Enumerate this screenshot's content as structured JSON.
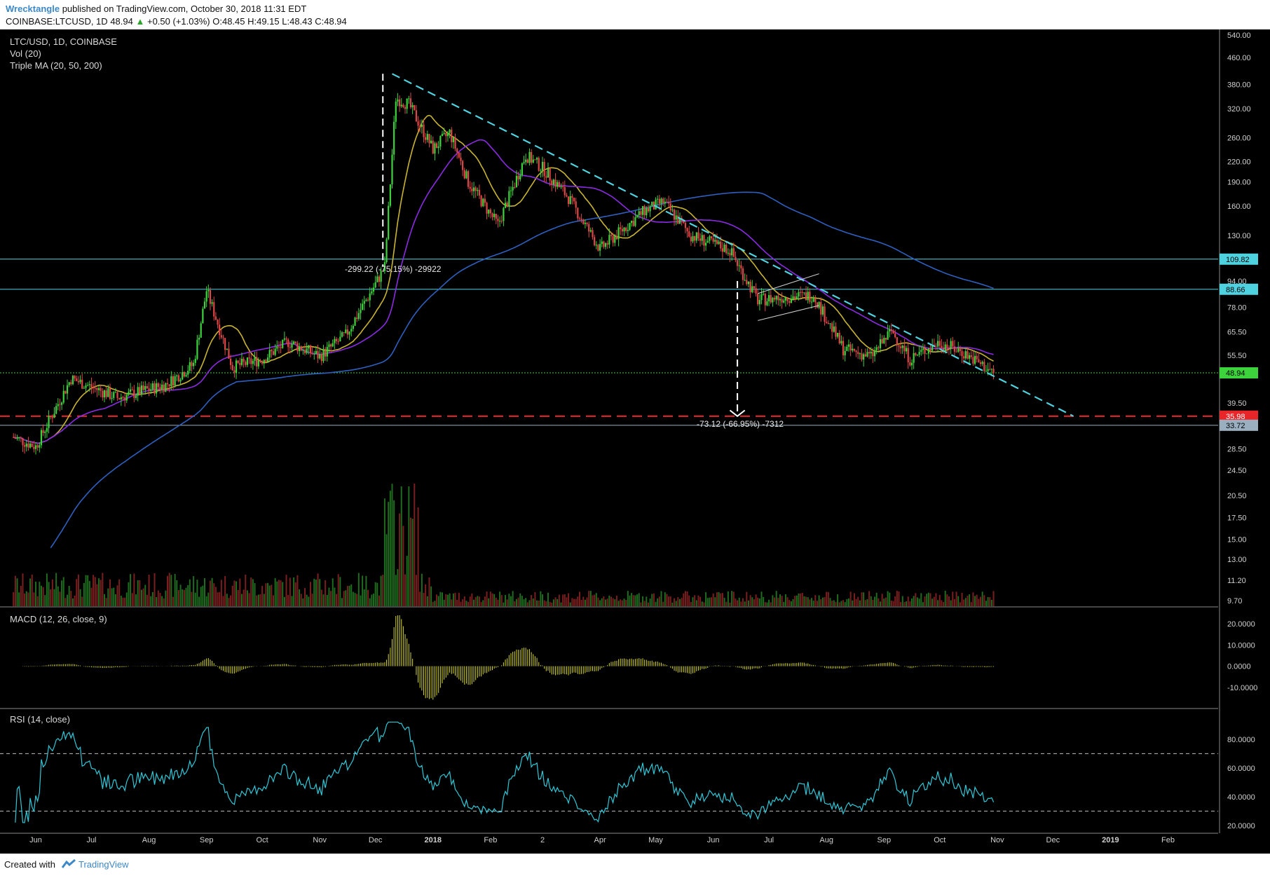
{
  "header": {
    "author": "Wrecktangle",
    "published": "published on TradingView.com, October 30, 2018 11:31 EDT",
    "symbol_line": "COINBASE:LTCUSD, 1D",
    "last": "48.94",
    "change": "+0.50 (+1.03%)",
    "ohlc": "O:48.45 H:49.15 L:48.43 C:48.94"
  },
  "footer": {
    "created_with": "Created with",
    "brand": "TradingView"
  },
  "legend": {
    "symbol": "LTC/USD, 1D, COINBASE",
    "volume": "Vol (20)",
    "ma": "Triple MA (20, 50, 200)"
  },
  "annotations": {
    "rise": "-299.22 (-75.15%) -29922",
    "drop": "-73.12 (-66.95%) -7312"
  },
  "colors": {
    "background": "#000000",
    "up": "#3cd33c",
    "down": "#e04646",
    "ma20": "#c9b431",
    "ma50": "#8a2be2",
    "ma200": "#2f5fbf",
    "trendline": "#4fd2e0",
    "support_red": "#e8262a",
    "macd": "#d7d72a",
    "rsi": "#30c8d8"
  },
  "chart_data": [
    {
      "type": "candlestick",
      "title": "LTC/USD, 1D, COINBASE",
      "y_scale": "log",
      "ylim": [
        9.7,
        540
      ],
      "y_ticks": [
        "540.00",
        "460.00",
        "380.00",
        "320.00",
        "260.00",
        "220.00",
        "190.00",
        "160.00",
        "130.00",
        "94.00",
        "78.00",
        "65.50",
        "55.50",
        "39.50",
        "28.50",
        "24.50",
        "20.50",
        "17.50",
        "15.00",
        "13.00",
        "11.20",
        "9.70"
      ],
      "x_ticks": [
        "Jun",
        "Jul",
        "Aug",
        "Sep",
        "Oct",
        "Nov",
        "Dec",
        "2018",
        "Feb",
        "2",
        "Apr",
        "May",
        "Jun",
        "Jul",
        "Aug",
        "Sep",
        "Oct",
        "Nov",
        "Dec",
        "2019",
        "Feb"
      ],
      "price_key_points": [
        {
          "date": "2017-05-20",
          "close": 31
        },
        {
          "date": "2017-06-01",
          "close": 29
        },
        {
          "date": "2017-06-20",
          "close": 47
        },
        {
          "date": "2017-07-15",
          "close": 41
        },
        {
          "date": "2017-08-10",
          "close": 45
        },
        {
          "date": "2017-08-25",
          "close": 52
        },
        {
          "date": "2017-09-01",
          "close": 88
        },
        {
          "date": "2017-09-15",
          "close": 51
        },
        {
          "date": "2017-10-01",
          "close": 54
        },
        {
          "date": "2017-10-15",
          "close": 61
        },
        {
          "date": "2017-11-01",
          "close": 55
        },
        {
          "date": "2017-11-15",
          "close": 64
        },
        {
          "date": "2017-12-01",
          "close": 92
        },
        {
          "date": "2017-12-06",
          "close": 104
        },
        {
          "date": "2017-12-12",
          "close": 345
        },
        {
          "date": "2017-12-19",
          "close": 330
        },
        {
          "date": "2018-01-01",
          "close": 240
        },
        {
          "date": "2018-01-10",
          "close": 270
        },
        {
          "date": "2018-01-20",
          "close": 190
        },
        {
          "date": "2018-02-05",
          "close": 140
        },
        {
          "date": "2018-02-20",
          "close": 230
        },
        {
          "date": "2018-03-01",
          "close": 210
        },
        {
          "date": "2018-03-15",
          "close": 170
        },
        {
          "date": "2018-04-01",
          "close": 118
        },
        {
          "date": "2018-04-25",
          "close": 155
        },
        {
          "date": "2018-05-05",
          "close": 165
        },
        {
          "date": "2018-05-20",
          "close": 130
        },
        {
          "date": "2018-06-10",
          "close": 117
        },
        {
          "date": "2018-06-25",
          "close": 82
        },
        {
          "date": "2018-07-10",
          "close": 84
        },
        {
          "date": "2018-07-25",
          "close": 85
        },
        {
          "date": "2018-08-10",
          "close": 58
        },
        {
          "date": "2018-08-25",
          "close": 55
        },
        {
          "date": "2018-09-05",
          "close": 66
        },
        {
          "date": "2018-09-15",
          "close": 54
        },
        {
          "date": "2018-10-01",
          "close": 61
        },
        {
          "date": "2018-10-15",
          "close": 56
        },
        {
          "date": "2018-10-30",
          "close": 48.94
        }
      ],
      "horizontal_lines": [
        {
          "value": 109.82,
          "label": "109.82",
          "color": "#4fd2e0"
        },
        {
          "value": 88.66,
          "label": "88.66",
          "color": "#4fd2e0"
        },
        {
          "value": 48.94,
          "label": "48.94",
          "color": "#3cd33c"
        },
        {
          "value": 35.98,
          "label": "35.98",
          "color": "#e8262a"
        },
        {
          "value": 33.72,
          "label": "33.72",
          "color": "#9ab0c0"
        }
      ],
      "series": [
        {
          "name": "Triple MA 20",
          "color": "#c9b431"
        },
        {
          "name": "Triple MA 50",
          "color": "#8a2be2"
        },
        {
          "name": "Triple MA 200",
          "color": "#2f5fbf"
        }
      ]
    },
    {
      "type": "bar",
      "title": "MACD (12, 26, close, 9)",
      "y_ticks": [
        "20.0000",
        "10.0000",
        "0.0000",
        "-10.0000"
      ],
      "ylim": [
        -17,
        25
      ]
    },
    {
      "type": "line",
      "title": "RSI (14, close)",
      "y_ticks": [
        "80.0000",
        "60.0000",
        "40.0000",
        "20.0000"
      ],
      "levels": [
        70,
        30
      ],
      "ylim": [
        18,
        98
      ]
    }
  ]
}
